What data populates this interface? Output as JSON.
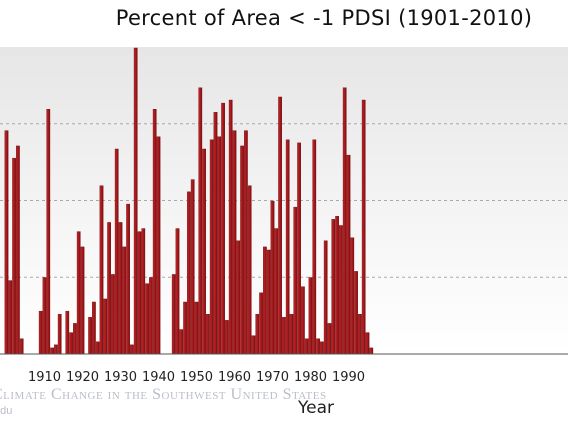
{
  "chart_data": {
    "type": "bar",
    "title": "Percent of Area < -1 PDSI (1901-2010)",
    "xlabel": "Year",
    "ylabel": "",
    "xlim": [
      1900,
      1999
    ],
    "ylim": [
      0,
      100
    ],
    "grid": true,
    "bar_color": "#a8191c",
    "x_ticks": [
      "1910",
      "1920",
      "1930",
      "1940",
      "1950",
      "1960",
      "1970",
      "1980",
      "1990"
    ],
    "x": [
      1900,
      1901,
      1902,
      1903,
      1904,
      1905,
      1906,
      1907,
      1908,
      1909,
      1910,
      1911,
      1912,
      1913,
      1914,
      1915,
      1916,
      1917,
      1918,
      1919,
      1920,
      1921,
      1922,
      1923,
      1924,
      1925,
      1926,
      1927,
      1928,
      1929,
      1930,
      1931,
      1932,
      1933,
      1934,
      1935,
      1936,
      1937,
      1938,
      1939,
      1940,
      1941,
      1942,
      1943,
      1944,
      1945,
      1946,
      1947,
      1948,
      1949,
      1950,
      1951,
      1952,
      1953,
      1954,
      1955,
      1956,
      1957,
      1958,
      1959,
      1960,
      1961,
      1962,
      1963,
      1964,
      1965,
      1966,
      1967,
      1968,
      1969,
      1970,
      1971,
      1972,
      1973,
      1974,
      1975,
      1976,
      1977,
      1978,
      1979,
      1980,
      1981,
      1982,
      1983,
      1984,
      1985,
      1986,
      1987,
      1988,
      1989,
      1990,
      1991,
      1992,
      1993,
      1994,
      1995,
      1996,
      1997,
      1998,
      1999
    ],
    "values": [
      73,
      24,
      64,
      68,
      5,
      0,
      0,
      0,
      0,
      14,
      25,
      80,
      2,
      3,
      13,
      0,
      14,
      7,
      10,
      40,
      35,
      0,
      12,
      17,
      4,
      55,
      18,
      43,
      26,
      67,
      43,
      35,
      49,
      3,
      100,
      40,
      41,
      23,
      25,
      80,
      71,
      0,
      0,
      0,
      26,
      41,
      8,
      17,
      53,
      57,
      17,
      87,
      67,
      13,
      70,
      79,
      71,
      82,
      11,
      83,
      73,
      37,
      68,
      73,
      55,
      6,
      13,
      20,
      35,
      34,
      50,
      41,
      84,
      12,
      70,
      13,
      48,
      69,
      22,
      5,
      25,
      70,
      5,
      4,
      37,
      10,
      44,
      45,
      42,
      87,
      65,
      38,
      27,
      13,
      83,
      7,
      2,
      0,
      0,
      0
    ],
    "watermark": "Climate Change in the Southwest United States",
    "watermark_sub": "edu"
  }
}
